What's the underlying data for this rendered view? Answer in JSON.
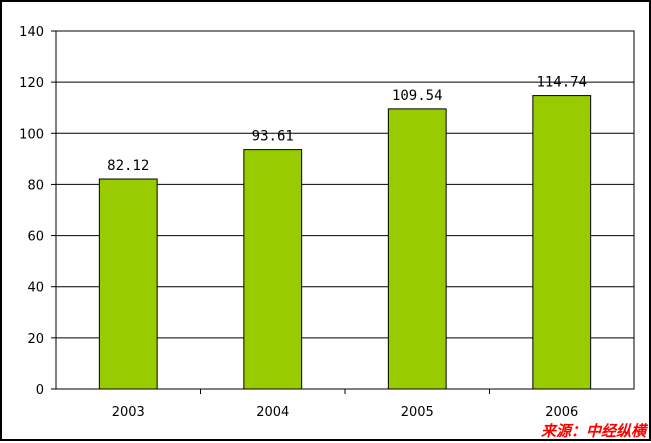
{
  "chart_data": {
    "type": "bar",
    "categories": [
      "2003",
      "2004",
      "2005",
      "2006"
    ],
    "values": [
      82.12,
      93.61,
      109.54,
      114.74
    ],
    "value_labels": [
      "82.12",
      "93.61",
      "109.54",
      "114.74"
    ],
    "y_ticks": [
      "0",
      "20",
      "40",
      "60",
      "80",
      "100",
      "120",
      "140"
    ],
    "ylim": [
      0,
      140
    ],
    "grid": true,
    "bar_color": "#99cc00",
    "source": "来源：中经纵横"
  }
}
